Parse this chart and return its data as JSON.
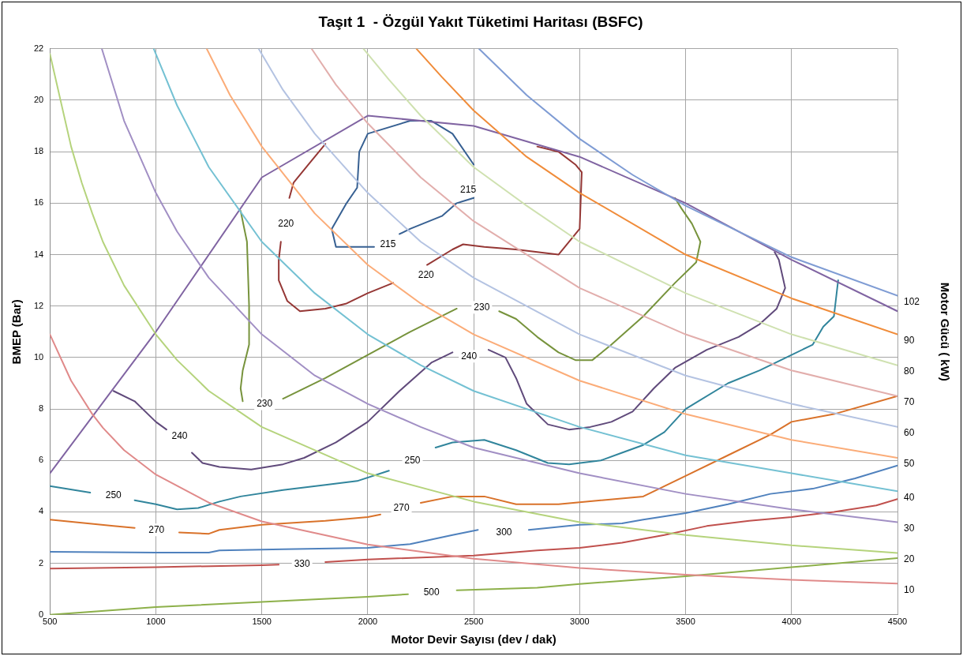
{
  "chart_data": {
    "type": "line",
    "title": "Taşıt 1  - Özgül Yakıt Tüketimi Haritası (BSFC)",
    "xlabel": "Motor Devir Sayısı (dev / dak)",
    "ylabel": "BMEP (Bar)",
    "y2label": "Motor Gücü ( kW)",
    "xlim": [
      500,
      4500
    ],
    "xticks": [
      500,
      1000,
      1500,
      2000,
      2500,
      3000,
      3500,
      4000,
      4500
    ],
    "ylim": [
      0,
      22
    ],
    "yticks": [
      0,
      2,
      4,
      6,
      8,
      10,
      12,
      14,
      16,
      18,
      20,
      22
    ],
    "grid": true,
    "legend": false,
    "marker": "none",
    "line_style": "solid",
    "series": [
      {
        "name": "10",
        "color": "#e08a8a",
        "x": [
          500,
          600,
          700,
          750,
          850,
          1000,
          1250,
          1500,
          2000,
          2500,
          3000,
          3500,
          4000,
          4500
        ],
        "values": [
          10.9,
          9.1,
          7.8,
          7.27,
          6.4,
          5.45,
          4.36,
          3.63,
          2.73,
          2.18,
          1.82,
          1.56,
          1.36,
          1.21
        ]
      },
      {
        "name": "20",
        "color": "#b5d37c",
        "x": [
          500,
          600,
          650,
          700,
          750,
          850,
          1000,
          1100,
          1250,
          1500,
          2000,
          2500,
          3000,
          3500,
          4000,
          4500
        ],
        "values": [
          21.8,
          18.2,
          16.8,
          15.6,
          14.5,
          12.8,
          10.9,
          9.9,
          8.7,
          7.3,
          5.5,
          4.4,
          3.6,
          3.1,
          2.7,
          2.4
        ]
      },
      {
        "name": "30",
        "color": "#a18fc4",
        "x": [
          745,
          850,
          1000,
          1100,
          1250,
          1500,
          1750,
          2000,
          2250,
          2500,
          3000,
          3500,
          4000,
          4500
        ],
        "values": [
          22,
          19.2,
          16.4,
          14.9,
          13.1,
          10.9,
          9.3,
          8.2,
          7.3,
          6.5,
          5.5,
          4.7,
          4.1,
          3.6
        ]
      },
      {
        "name": "40",
        "color": "#74c1d3",
        "x": [
          990,
          1100,
          1250,
          1500,
          1750,
          2000,
          2250,
          2500,
          3000,
          3500,
          4000,
          4500
        ],
        "values": [
          22,
          19.8,
          17.4,
          14.5,
          12.5,
          10.9,
          9.7,
          8.7,
          7.3,
          6.2,
          5.5,
          4.8
        ]
      },
      {
        "name": "50",
        "color": "#fbac78",
        "x": [
          1240,
          1350,
          1500,
          1750,
          2000,
          2250,
          2500,
          3000,
          3500,
          4000,
          4500
        ],
        "values": [
          22,
          20.2,
          18.2,
          15.6,
          13.6,
          12.1,
          10.9,
          9.1,
          7.8,
          6.8,
          6.1
        ]
      },
      {
        "name": "60",
        "color": "#b4c3e2",
        "x": [
          1485,
          1600,
          1750,
          2000,
          2250,
          2500,
          3000,
          3500,
          4000,
          4500
        ],
        "values": [
          22,
          20.4,
          18.7,
          16.4,
          14.5,
          13.1,
          10.9,
          9.3,
          8.2,
          7.3
        ]
      },
      {
        "name": "70",
        "color": "#e2aeac",
        "x": [
          1735,
          1850,
          2000,
          2250,
          2500,
          3000,
          3500,
          4000,
          4500
        ],
        "values": [
          22,
          20.6,
          19.1,
          17.0,
          15.3,
          12.7,
          10.9,
          9.5,
          8.5
        ]
      },
      {
        "name": "80",
        "color": "#cfe1b0",
        "x": [
          1980,
          2100,
          2250,
          2500,
          2750,
          3000,
          3500,
          4000,
          4500
        ],
        "values": [
          22,
          20.8,
          19.4,
          17.4,
          15.9,
          14.5,
          12.5,
          10.9,
          9.7
        ]
      },
      {
        "name": "90",
        "color": "#f08c3a",
        "x": [
          2230,
          2350,
          2500,
          2750,
          3000,
          3500,
          4000,
          4500
        ],
        "values": [
          22,
          20.9,
          19.6,
          17.8,
          16.4,
          14.0,
          12.3,
          10.9
        ]
      },
      {
        "name": "102",
        "color": "#7f9cd4",
        "x": [
          2525,
          2750,
          3000,
          3250,
          3500,
          4000,
          4500
        ],
        "values": [
          22,
          20.2,
          18.5,
          17.1,
          15.9,
          13.9,
          12.4
        ]
      },
      {
        "color": "#8064a2",
        "x": [
          500,
          1000,
          1500,
          2000,
          2500,
          3000,
          3500,
          4000,
          4500
        ],
        "values": [
          5.5,
          11,
          17,
          19.4,
          19.0,
          17.8,
          16.0,
          13.8,
          11.8
        ]
      },
      {
        "color": "#376092",
        "x": [
          2030,
          1950,
          1850,
          1830,
          1900,
          1950,
          1960,
          2000,
          2200,
          2300,
          2400,
          2500,
          null,
          2500,
          2420,
          2350,
          2200,
          2150
        ],
        "values": [
          14.3,
          14.3,
          14.3,
          15,
          16,
          16.6,
          18,
          18.7,
          19.2,
          19.2,
          18.7,
          17.5,
          null,
          16.2,
          16,
          15.5,
          15,
          14.8
        ]
      },
      {
        "color": "#953735",
        "x": [
          1800,
          1720,
          1650,
          1630,
          null,
          1590,
          1580,
          1580,
          1620,
          1680,
          1800,
          1900,
          2000,
          2120,
          null,
          2280,
          2400,
          2450,
          2550,
          2700,
          2900,
          3000,
          3010,
          2980,
          2900,
          2800
        ],
        "values": [
          18.3,
          17.5,
          16.8,
          16.2,
          null,
          14.5,
          13.8,
          13,
          12.2,
          11.8,
          11.9,
          12.1,
          12.5,
          12.9,
          null,
          13.6,
          14.2,
          14.4,
          14.3,
          14.2,
          14.0,
          15,
          17.2,
          17.5,
          18,
          18.2
        ]
      },
      {
        "color": "#77933c",
        "x": [
          1400,
          1430,
          1440,
          1440,
          1410,
          1400,
          1410,
          null,
          1600,
          1800,
          2000,
          2200,
          2420,
          null,
          2620,
          2700,
          2800,
          2900,
          2980,
          3060,
          3150,
          3300,
          3450,
          3550,
          3570,
          3530,
          3480,
          3450
        ],
        "values": [
          15.7,
          14.5,
          12,
          10.5,
          9.5,
          8.8,
          8.3,
          null,
          8.4,
          9.2,
          10.1,
          11,
          11.9,
          null,
          11.8,
          11.5,
          10.8,
          10.2,
          9.9,
          9.9,
          10.5,
          11.6,
          12.9,
          13.7,
          14.5,
          15.2,
          15.8,
          16.2
        ]
      },
      {
        "color": "#604a7b",
        "x": [
          800,
          900,
          1000,
          1050,
          null,
          1170,
          1220,
          1300,
          1450,
          1600,
          1700,
          1850,
          2000,
          2150,
          2300,
          2400,
          null,
          2570,
          2650,
          2700,
          2750,
          2850,
          2950,
          3050,
          3150,
          3250,
          3350,
          3450,
          3600,
          3750,
          3850,
          3930,
          3970,
          3940,
          3920
        ],
        "values": [
          8.7,
          8.3,
          7.5,
          7.2,
          null,
          6.3,
          5.9,
          5.75,
          5.65,
          5.85,
          6.1,
          6.7,
          7.5,
          8.7,
          9.8,
          10.2,
          null,
          10.3,
          10,
          9.2,
          8.2,
          7.4,
          7.2,
          7.3,
          7.5,
          7.9,
          8.8,
          9.6,
          10.3,
          10.8,
          11.3,
          11.9,
          12.7,
          13.8,
          14.1
        ]
      },
      {
        "color": "#31859c",
        "x": [
          500,
          690,
          null,
          900,
          1000,
          1100,
          1200,
          1300,
          1400,
          1600,
          1800,
          1950,
          2100,
          null,
          2320,
          2400,
          2550,
          2700,
          2850,
          2950,
          3100,
          3200,
          3300,
          3400,
          3500,
          3700,
          3850,
          4000,
          4100,
          4150,
          4200,
          4220
        ],
        "values": [
          5.0,
          4.75,
          null,
          4.45,
          4.3,
          4.1,
          4.15,
          4.4,
          4.6,
          4.85,
          5.05,
          5.2,
          5.6,
          null,
          6.5,
          6.7,
          6.8,
          6.4,
          5.9,
          5.85,
          6.0,
          6.3,
          6.6,
          7.1,
          8.0,
          9.0,
          9.5,
          10.1,
          10.5,
          11.2,
          11.6,
          13.0
        ]
      },
      {
        "color": "#d9722a",
        "x": [
          500,
          800,
          900,
          null,
          1110,
          1250,
          1300,
          1500,
          1800,
          2000,
          2060,
          null,
          2250,
          2400,
          2550,
          2700,
          2900,
          3100,
          3300,
          3500,
          3700,
          3900,
          4000,
          4200,
          4500
        ],
        "values": [
          3.7,
          3.45,
          3.38,
          null,
          3.2,
          3.15,
          3.3,
          3.5,
          3.65,
          3.8,
          3.9,
          null,
          4.35,
          4.6,
          4.6,
          4.3,
          4.3,
          4.45,
          4.6,
          5.4,
          6.2,
          7.0,
          7.5,
          7.8,
          8.5
        ]
      },
      {
        "color": "#4f81bd",
        "x": [
          500,
          1000,
          1250,
          1300,
          1600,
          2000,
          2200,
          2400,
          2520,
          null,
          2760,
          3000,
          3200,
          3300,
          3500,
          3700,
          3900,
          4100,
          4300,
          4500
        ],
        "values": [
          2.45,
          2.42,
          2.42,
          2.5,
          2.55,
          2.6,
          2.75,
          3.1,
          3.3,
          null,
          3.3,
          3.5,
          3.55,
          3.7,
          3.95,
          4.3,
          4.7,
          4.9,
          5.3,
          5.8
        ]
      },
      {
        "color": "#c0504d",
        "x": [
          500,
          1000,
          1500,
          1580,
          null,
          1800,
          2000,
          2500,
          2800,
          3000,
          3200,
          3400,
          3600,
          3800,
          4000,
          4200,
          4400,
          4500
        ],
        "values": [
          1.8,
          1.85,
          1.93,
          1.95,
          null,
          2.05,
          2.15,
          2.3,
          2.5,
          2.6,
          2.8,
          3.1,
          3.45,
          3.65,
          3.8,
          4.0,
          4.25,
          4.5
        ]
      },
      {
        "color": "#8db04a",
        "x": [
          500,
          1000,
          1500,
          2000,
          2190,
          null,
          2420,
          2800,
          3000,
          3500,
          4000,
          4500
        ],
        "values": [
          0,
          0.3,
          0.5,
          0.7,
          0.8,
          null,
          0.95,
          1.05,
          1.2,
          1.5,
          1.85,
          2.2
        ]
      }
    ],
    "annotations": [
      {
        "text": "215",
        "x": 2474,
        "y": 16.5
      },
      {
        "text": "215",
        "x": 2095,
        "y": 14.4
      },
      {
        "text": "220",
        "x": 1614,
        "y": 15.2
      },
      {
        "text": "220",
        "x": 2275,
        "y": 13.2
      },
      {
        "text": "230",
        "x": 1513,
        "y": 8.2
      },
      {
        "text": "230",
        "x": 2538,
        "y": 11.95
      },
      {
        "text": "240",
        "x": 1112,
        "y": 6.95
      },
      {
        "text": "240",
        "x": 2478,
        "y": 10.05
      },
      {
        "text": "250",
        "x": 800,
        "y": 4.65
      },
      {
        "text": "250",
        "x": 2211,
        "y": 6.0
      },
      {
        "text": "270",
        "x": 1003,
        "y": 3.3
      },
      {
        "text": "270",
        "x": 2159,
        "y": 4.15
      },
      {
        "text": "300",
        "x": 2643,
        "y": 3.2
      },
      {
        "text": "330",
        "x": 1690,
        "y": 1.96
      },
      {
        "text": "500",
        "x": 2301,
        "y": 0.85
      }
    ]
  }
}
